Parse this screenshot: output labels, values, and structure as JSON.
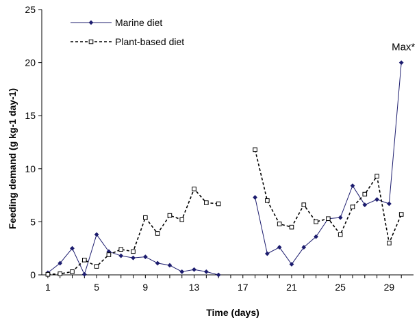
{
  "chart_data": {
    "type": "line",
    "title": "",
    "xlabel": "Time (days)",
    "ylabel": "Feeding demand (g kg-1 day-1)",
    "xlim": [
      0.5,
      31
    ],
    "ylim": [
      0,
      25
    ],
    "xticks": [
      1,
      5,
      9,
      13,
      17,
      21,
      25,
      29
    ],
    "yticks": [
      0,
      5,
      10,
      15,
      20,
      25
    ],
    "grid": false,
    "legend_position": "top-left",
    "series": [
      {
        "name": "Marine diet",
        "color": "#1c1c6e",
        "marker": "filled-diamond",
        "line_style": "solid",
        "segments": [
          [
            [
              1,
              0.2
            ],
            [
              2,
              1.1
            ],
            [
              3,
              2.5
            ],
            [
              4,
              0.05
            ],
            [
              5,
              3.8
            ],
            [
              6,
              2.2
            ],
            [
              7,
              1.8
            ],
            [
              8,
              1.6
            ],
            [
              9,
              1.7
            ],
            [
              10,
              1.1
            ],
            [
              11,
              0.9
            ],
            [
              12,
              0.3
            ],
            [
              13,
              0.5
            ],
            [
              14,
              0.3
            ],
            [
              15,
              0.0
            ]
          ],
          [
            [
              18,
              7.3
            ],
            [
              19,
              2.0
            ],
            [
              20,
              2.6
            ],
            [
              21,
              1.0
            ],
            [
              22,
              2.6
            ],
            [
              23,
              3.6
            ],
            [
              24,
              5.3
            ],
            [
              25,
              5.4
            ],
            [
              26,
              8.4
            ],
            [
              27,
              6.6
            ],
            [
              28,
              7.1
            ],
            [
              29,
              6.7
            ],
            [
              30,
              20.0
            ]
          ]
        ]
      },
      {
        "name": "Plant-based diet",
        "color": "#000000",
        "marker": "open-square",
        "line_style": "dashed",
        "segments": [
          [
            [
              1,
              0.05
            ],
            [
              2,
              0.1
            ],
            [
              3,
              0.3
            ],
            [
              4,
              1.4
            ],
            [
              5,
              0.8
            ],
            [
              6,
              1.9
            ],
            [
              7,
              2.4
            ],
            [
              8,
              2.2
            ],
            [
              9,
              5.4
            ],
            [
              10,
              3.9
            ],
            [
              11,
              5.6
            ],
            [
              12,
              5.2
            ],
            [
              13,
              8.1
            ],
            [
              14,
              6.8
            ],
            [
              15,
              6.7
            ]
          ],
          [
            [
              18,
              11.8
            ],
            [
              19,
              7.0
            ],
            [
              20,
              4.8
            ],
            [
              21,
              4.5
            ],
            [
              22,
              6.6
            ],
            [
              23,
              5.0
            ],
            [
              24,
              5.3
            ],
            [
              25,
              3.8
            ],
            [
              26,
              6.4
            ],
            [
              27,
              7.6
            ],
            [
              28,
              9.3
            ],
            [
              29,
              3.0
            ],
            [
              30,
              5.7
            ]
          ]
        ]
      }
    ],
    "annotations": [
      {
        "text": "Max*",
        "x": 30,
        "y": 20
      }
    ]
  }
}
